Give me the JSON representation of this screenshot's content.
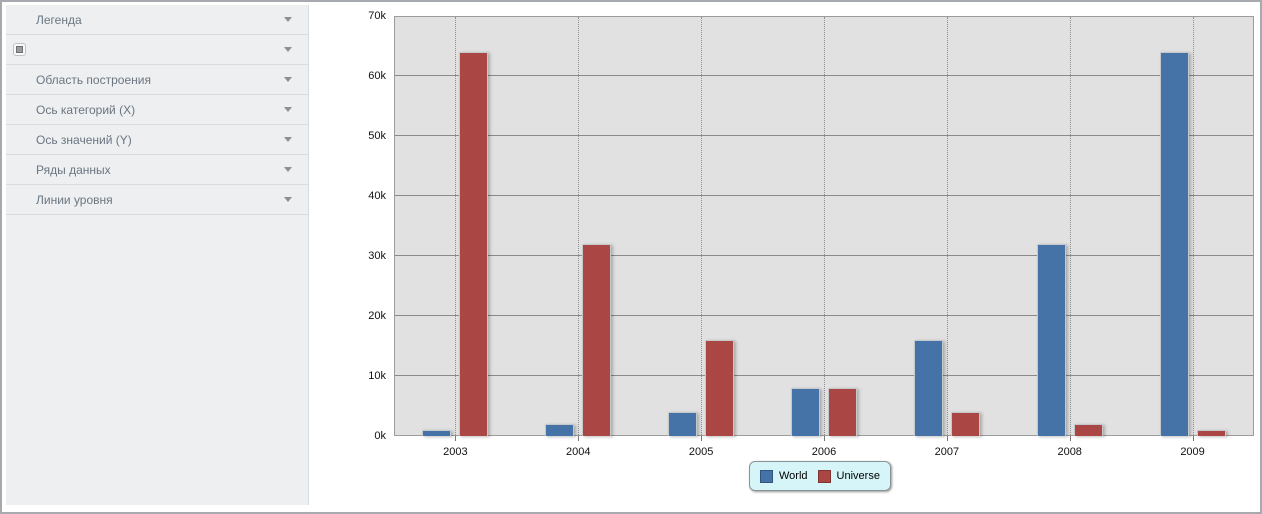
{
  "sidebar": {
    "items": [
      {
        "label": "Легенда",
        "has_icon": false
      },
      {
        "label": "",
        "has_icon": true
      },
      {
        "label": "Область построения",
        "has_icon": false
      },
      {
        "label": "Ось категорий (X)",
        "has_icon": false
      },
      {
        "label": "Ось значений (Y)",
        "has_icon": false
      },
      {
        "label": "Ряды данных",
        "has_icon": false
      },
      {
        "label": "Линии уровня",
        "has_icon": false
      }
    ],
    "icon": "gray-square-swatch"
  },
  "chart_data": {
    "type": "bar",
    "title": "",
    "xlabel": "",
    "ylabel": "",
    "categories": [
      "2003",
      "2004",
      "2005",
      "2006",
      "2007",
      "2008",
      "2009"
    ],
    "series": [
      {
        "name": "World",
        "color": "#4572a7",
        "values": [
          1000,
          2000,
          4000,
          8000,
          16000,
          32000,
          64000
        ]
      },
      {
        "name": "Universe",
        "color": "#aa4643",
        "values": [
          64000,
          32000,
          16000,
          8000,
          4000,
          2000,
          1000
        ]
      }
    ],
    "ylim": [
      0,
      70000
    ],
    "ytick_step": 10000,
    "ytick_labels": [
      "0k",
      "10k",
      "20k",
      "30k",
      "40k",
      "50k",
      "60k",
      "70k"
    ],
    "grid": "horizontal-solid, vertical-dotted-at-category-centers",
    "legend_position": "bottom-center",
    "plot_background": "#e1e1e1",
    "legend_background": "#d5f5f8"
  }
}
